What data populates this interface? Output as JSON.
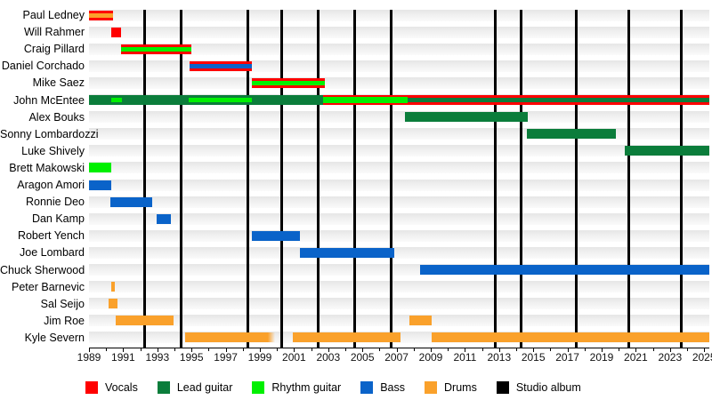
{
  "chart_data": {
    "type": "timeline",
    "x_axis": {
      "start_year": 1989,
      "end_year": 2025.3,
      "tick_label_years": [
        1989,
        1991,
        1993,
        1995,
        1997,
        1999,
        2001,
        2003,
        2005,
        2007,
        2009,
        2011,
        2013,
        2015,
        2017,
        2019,
        2021,
        2023,
        2025
      ]
    },
    "role_colors": {
      "vocals": "#ff0000",
      "lead_guitar": "#0b7d3b",
      "rhythm_guitar": "#00f000",
      "bass": "#0a63c9",
      "drums": "#faa12b",
      "studio_album": "#000000"
    },
    "legend": [
      {
        "label": "Vocals",
        "role": "vocals"
      },
      {
        "label": "Lead guitar",
        "role": "lead_guitar"
      },
      {
        "label": "Rhythm guitar",
        "role": "rhythm_guitar"
      },
      {
        "label": "Bass",
        "role": "bass"
      },
      {
        "label": "Drums",
        "role": "drums"
      },
      {
        "label": "Studio album",
        "role": "studio_album"
      }
    ],
    "album_years": [
      1992.25,
      1994.4,
      1998.3,
      2000.3,
      2002.4,
      2004.55,
      2006.7,
      2012.8,
      2014.3,
      2017.5,
      2020.6,
      2023.65
    ],
    "members": [
      {
        "name": "Paul Ledney",
        "bars": [
          {
            "from": 1989.0,
            "till": 1990.41,
            "role": "vocals"
          },
          {
            "from": 1989.0,
            "till": 1990.41,
            "role": "drums",
            "stripe": true
          }
        ]
      },
      {
        "name": "Will Rahmer",
        "bars": [
          {
            "from": 1990.3,
            "till": 1990.88,
            "role": "vocals"
          }
        ]
      },
      {
        "name": "Craig Pillard",
        "bars": [
          {
            "from": 1990.88,
            "till": 1994.99,
            "role": "vocals"
          },
          {
            "from": 1990.88,
            "till": 1994.99,
            "role": "rhythm_guitar",
            "stripe": true
          }
        ]
      },
      {
        "name": "Daniel Corchado",
        "bars": [
          {
            "from": 1994.89,
            "till": 1998.53,
            "role": "vocals"
          },
          {
            "from": 1994.89,
            "till": 1998.53,
            "role": "bass",
            "stripe": true
          }
        ]
      },
      {
        "name": "Mike Saez",
        "bars": [
          {
            "from": 1998.53,
            "till": 2002.8,
            "role": "vocals"
          },
          {
            "from": 1998.53,
            "till": 2002.8,
            "role": "rhythm_guitar",
            "stripe": true
          }
        ]
      },
      {
        "name": "John McEntee",
        "bars": [
          {
            "from": 1989.0,
            "till": 2002.7,
            "role": "lead_guitar"
          },
          {
            "from": 2002.7,
            "till": 2025.3,
            "role": "vocals"
          },
          {
            "from": 1990.3,
            "till": 1990.93,
            "role": "rhythm_guitar",
            "stripe": true
          },
          {
            "from": 1994.83,
            "till": 1998.53,
            "role": "rhythm_guitar",
            "stripe": true
          },
          {
            "from": 2002.7,
            "till": 2007.65,
            "role": "rhythm_guitar",
            "stripe": true,
            "wide": true
          },
          {
            "from": 2007.65,
            "till": 2025.3,
            "role": "lead_guitar",
            "stripe": true
          }
        ]
      },
      {
        "name": "Alex Bouks",
        "bars": [
          {
            "from": 2007.49,
            "till": 2014.68,
            "role": "lead_guitar"
          }
        ]
      },
      {
        "name": "Sonny Lombardozzi",
        "bars": [
          {
            "from": 2014.63,
            "till": 2019.83,
            "role": "lead_guitar"
          }
        ]
      },
      {
        "name": "Luke Shively",
        "bars": [
          {
            "from": 2020.35,
            "till": 2025.3,
            "role": "lead_guitar"
          }
        ]
      },
      {
        "name": "Brett Makowski",
        "bars": [
          {
            "from": 1989.0,
            "till": 1990.3,
            "role": "rhythm_guitar"
          }
        ]
      },
      {
        "name": "Aragon Amori",
        "bars": [
          {
            "from": 1989.0,
            "till": 1990.3,
            "role": "bass"
          }
        ]
      },
      {
        "name": "Ronnie Deo",
        "bars": [
          {
            "from": 1990.25,
            "till": 1992.7,
            "role": "bass"
          }
        ]
      },
      {
        "name": "Dan Kamp",
        "bars": [
          {
            "from": 1992.96,
            "till": 1993.79,
            "role": "bass"
          }
        ]
      },
      {
        "name": "Robert Yench",
        "bars": [
          {
            "from": 1998.53,
            "till": 2001.34,
            "role": "bass"
          }
        ]
      },
      {
        "name": "Joe Lombard",
        "bars": [
          {
            "from": 2001.34,
            "till": 2006.86,
            "role": "bass"
          }
        ]
      },
      {
        "name": "Chuck Sherwood",
        "bars": [
          {
            "from": 2008.38,
            "till": 2025.3,
            "role": "bass"
          }
        ]
      },
      {
        "name": "Peter Barnevic",
        "bars": [
          {
            "from": 1990.3,
            "till": 1990.51,
            "role": "drums"
          }
        ]
      },
      {
        "name": "Sal Seijo",
        "bars": [
          {
            "from": 1990.15,
            "till": 1990.67,
            "role": "drums"
          }
        ]
      },
      {
        "name": "Jim Roe",
        "bars": [
          {
            "from": 1990.56,
            "till": 1993.95,
            "role": "drums"
          },
          {
            "from": 2007.75,
            "till": 2009.05,
            "role": "drums"
          }
        ]
      },
      {
        "name": "Kyle Severn",
        "bars": [
          {
            "from": 1994.63,
            "till": 1999.9,
            "role": "drums",
            "fade": "right"
          },
          {
            "from": 2000.94,
            "till": 2007.23,
            "role": "drums"
          },
          {
            "from": 2009.05,
            "till": 2025.3,
            "role": "drums"
          }
        ]
      }
    ]
  }
}
